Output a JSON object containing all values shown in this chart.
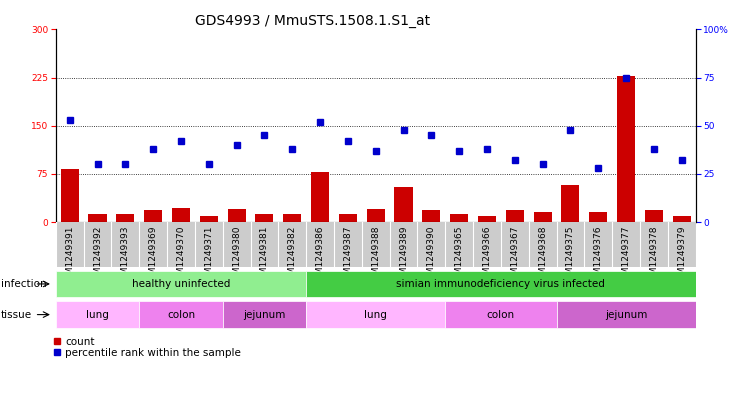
{
  "title": "GDS4993 / MmuSTS.1508.1.S1_at",
  "samples": [
    "GSM1249391",
    "GSM1249392",
    "GSM1249393",
    "GSM1249369",
    "GSM1249370",
    "GSM1249371",
    "GSM1249380",
    "GSM1249381",
    "GSM1249382",
    "GSM1249386",
    "GSM1249387",
    "GSM1249388",
    "GSM1249389",
    "GSM1249390",
    "GSM1249365",
    "GSM1249366",
    "GSM1249367",
    "GSM1249368",
    "GSM1249375",
    "GSM1249376",
    "GSM1249377",
    "GSM1249378",
    "GSM1249379"
  ],
  "counts": [
    83,
    12,
    12,
    18,
    22,
    10,
    20,
    12,
    12,
    78,
    12,
    20,
    55,
    18,
    12,
    10,
    18,
    15,
    58,
    15,
    228,
    18,
    10
  ],
  "percentile": [
    53,
    30,
    30,
    38,
    42,
    30,
    40,
    45,
    38,
    52,
    42,
    37,
    48,
    45,
    37,
    38,
    32,
    30,
    48,
    28,
    75,
    38,
    32
  ],
  "left_ylim": [
    0,
    300
  ],
  "left_yticks": [
    0,
    75,
    150,
    225,
    300
  ],
  "right_ylim": [
    0,
    100
  ],
  "right_yticks": [
    0,
    25,
    50,
    75,
    100
  ],
  "gridlines": [
    75,
    150,
    225
  ],
  "infection_groups": [
    {
      "label": "healthy uninfected",
      "start": 0,
      "end": 9,
      "color": "#90EE90"
    },
    {
      "label": "simian immunodeficiency virus infected",
      "start": 9,
      "end": 23,
      "color": "#44CC44"
    }
  ],
  "tissue_groups": [
    {
      "label": "lung",
      "start": 0,
      "end": 3,
      "color": "#FFB6FF"
    },
    {
      "label": "colon",
      "start": 3,
      "end": 6,
      "color": "#EE82EE"
    },
    {
      "label": "jejunum",
      "start": 6,
      "end": 9,
      "color": "#CC66CC"
    },
    {
      "label": "lung",
      "start": 9,
      "end": 14,
      "color": "#FFB6FF"
    },
    {
      "label": "colon",
      "start": 14,
      "end": 18,
      "color": "#EE82EE"
    },
    {
      "label": "jejunum",
      "start": 18,
      "end": 23,
      "color": "#CC66CC"
    }
  ],
  "bar_color": "#CC0000",
  "dot_color": "#0000CC",
  "col_bg_color": "#CCCCCC",
  "plot_bg_color": "#FFFFFF",
  "title_fontsize": 10,
  "tick_fontsize": 6.5,
  "label_fontsize": 8,
  "annotation_fontsize": 7.5
}
